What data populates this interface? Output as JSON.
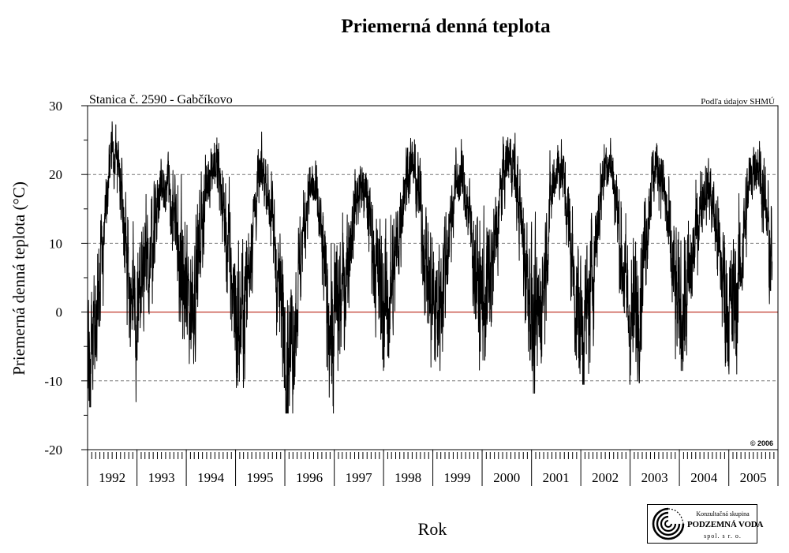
{
  "chart_data": {
    "type": "line",
    "title": "Priemerná denná teplota",
    "subtitle_left": "Stanica č. 2590 - Gabčíkovo",
    "subtitle_right": "Podľa údajov SHMÚ",
    "copyright": "© 2006",
    "xlabel": "Rok",
    "ylabel": "Priemerná denná teplota (°C)",
    "ylim": [
      -20,
      30
    ],
    "yticks": [
      -20,
      -10,
      0,
      10,
      20,
      30
    ],
    "ytick_labels": [
      "-20",
      "-10",
      "0",
      "10",
      "20",
      "30"
    ],
    "xlim": [
      "1992-01-01",
      "2005-12-31"
    ],
    "year_labels": [
      "1992",
      "1993",
      "1994",
      "1995",
      "1996",
      "1997",
      "1998",
      "1999",
      "2000",
      "2001",
      "2002",
      "2003",
      "2004",
      "2005"
    ],
    "grid": "dashed horizontal at ±10 and 20",
    "reference_line": {
      "y": 0,
      "color": "#c0392b"
    },
    "line_color": "#000000",
    "series": [
      {
        "values_note": "daily mean temperature",
        "yearly_extremes": [
          {
            "year": "1992",
            "min": -13.8,
            "max": 29.6
          },
          {
            "year": "1993",
            "min": -7.0,
            "max": 25.5
          },
          {
            "year": "1994",
            "min": -7.5,
            "max": 28.2
          },
          {
            "year": "1995",
            "min": -11.0,
            "max": 26.5
          },
          {
            "year": "1996",
            "min": -14.7,
            "max": 24.5
          },
          {
            "year": "1997",
            "min": -8.5,
            "max": 24.5
          },
          {
            "year": "1998",
            "min": -8.0,
            "max": 28.0
          },
          {
            "year": "1999",
            "min": -8.5,
            "max": 26.0
          },
          {
            "year": "2000",
            "min": -7.0,
            "max": 29.0
          },
          {
            "year": "2001",
            "min": -11.8,
            "max": 28.0
          },
          {
            "year": "2002",
            "min": -10.5,
            "max": 28.7
          },
          {
            "year": "2003",
            "min": -10.3,
            "max": 27.8
          },
          {
            "year": "2004",
            "min": -8.5,
            "max": 24.5
          },
          {
            "year": "2005",
            "min": -9.0,
            "max": 28.5
          }
        ]
      }
    ]
  },
  "logo": {
    "line1": "Konzultačná skupina",
    "line2": "PODZEMNÁ VODA",
    "line3": "spol. s r. o."
  }
}
